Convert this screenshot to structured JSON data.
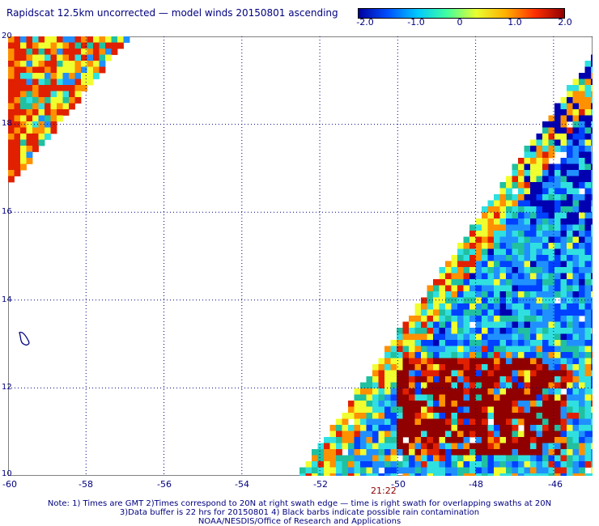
{
  "title": "Rapidscat 12.5km uncorrected — model winds 20150801 ascending",
  "colorbar": {
    "labels": [
      "-2.0",
      "-1.0",
      "0",
      "1.0",
      "2.0"
    ],
    "stops": [
      "#0000a0",
      "#0050ff",
      "#00c8ff",
      "#40ffa0",
      "#e8ff30",
      "#ffb000",
      "#ff3000",
      "#900000"
    ]
  },
  "map": {
    "lon_ticks": [
      "-60",
      "-58",
      "-56",
      "-54",
      "-52",
      "-50",
      "-48",
      "-46"
    ],
    "lat_ticks": [
      "20",
      "18",
      "16",
      "14",
      "12",
      "10"
    ],
    "lon_range": [
      -60,
      -45
    ],
    "lat_range": [
      10,
      20
    ],
    "swath_time": "21:22",
    "colors": {
      "dark_red": "#900000",
      "red": "#e02000",
      "orange": "#ff9000",
      "yellow": "#f0ff30",
      "cyan": "#30e0e0",
      "teal": "#20c0a0",
      "light_blue": "#2090ff",
      "blue": "#0040ff",
      "dark_blue": "#0000b0"
    }
  },
  "notes": [
    "Note: 1) Times are GMT 2)Times correspond to 20N at right swath edge — time is right swath for overlapping swaths at 20N",
    "3)Data buffer is 22 hrs for 20150801 4) Black barbs indicate possible rain contamination",
    "NOAA/NESDIS/Office of Research and Applications"
  ]
}
